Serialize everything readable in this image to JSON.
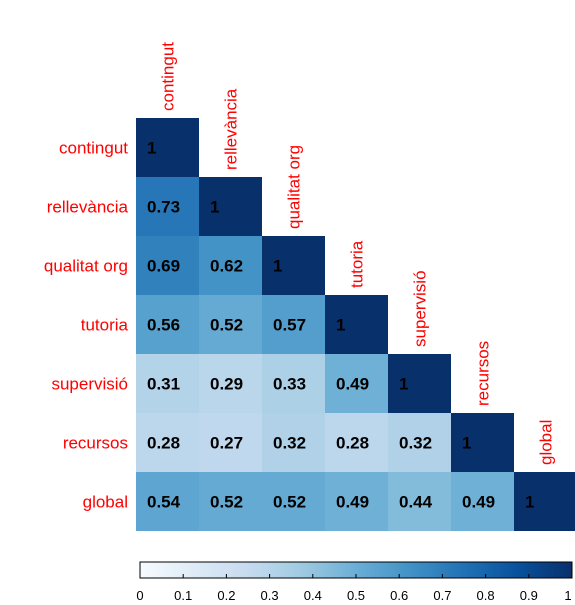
{
  "chart_data": {
    "type": "heatmap",
    "variables": [
      "contingut",
      "rellevància",
      "qualitat org",
      "tutoria",
      "supervisió",
      "recursos",
      "global"
    ],
    "matrix": [
      [
        1
      ],
      [
        0.73,
        1
      ],
      [
        0.69,
        0.62,
        1
      ],
      [
        0.56,
        0.52,
        0.57,
        1
      ],
      [
        0.31,
        0.29,
        0.33,
        0.49,
        1
      ],
      [
        0.28,
        0.27,
        0.32,
        0.28,
        0.32,
        1
      ],
      [
        0.54,
        0.52,
        0.52,
        0.49,
        0.44,
        0.49,
        1
      ]
    ],
    "cell_labels": [
      [
        "1"
      ],
      [
        "0.73",
        "1"
      ],
      [
        "0.69",
        "0.62",
        "1"
      ],
      [
        "0.56",
        "0.52",
        "0.57",
        "1"
      ],
      [
        "0.31",
        "0.29",
        "0.33",
        "0.49",
        "1"
      ],
      [
        "0.28",
        "0.27",
        "0.32",
        "0.28",
        "0.32",
        "1"
      ],
      [
        "0.54",
        "0.52",
        "0.52",
        "0.49",
        "0.44",
        "0.49",
        "1"
      ]
    ],
    "color_scale": {
      "min": 0,
      "max": 1,
      "low_color": "#f7fbff",
      "high_color": "#08306b"
    },
    "colorbar_ticks": [
      "0",
      "0.1",
      "0.2",
      "0.3",
      "0.4",
      "0.5",
      "0.6",
      "0.7",
      "0.8",
      "0.9",
      "1"
    ],
    "label_color": "#ff0000",
    "layout": "lower-triangle"
  }
}
